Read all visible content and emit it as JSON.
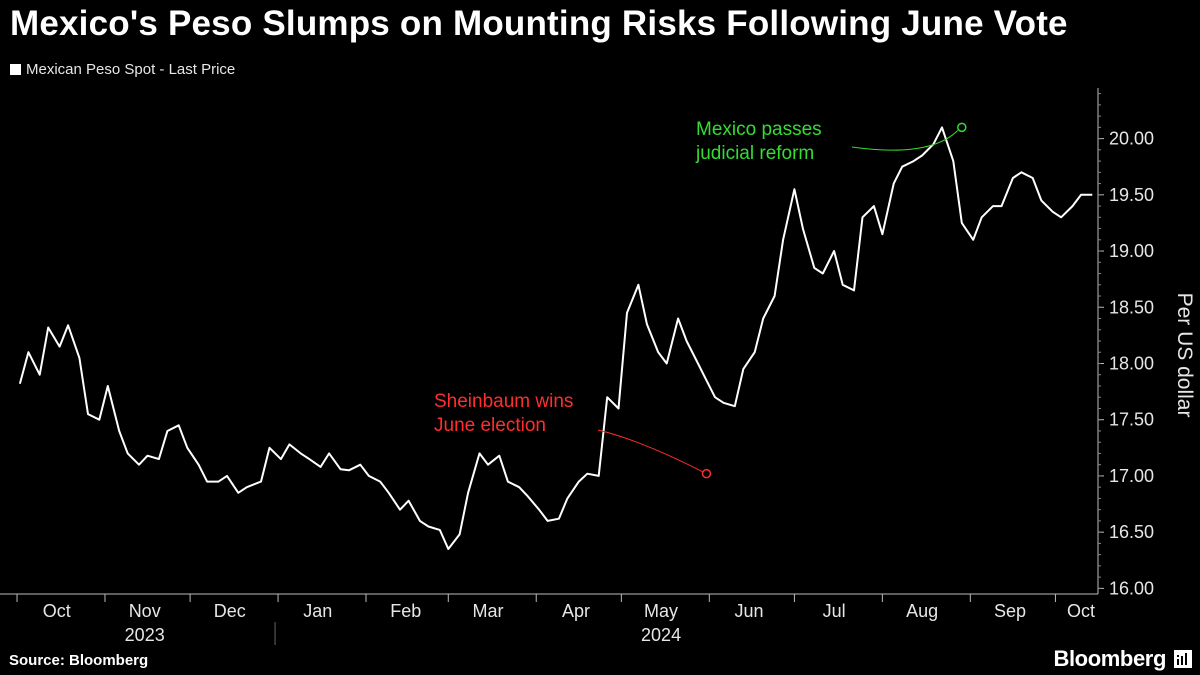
{
  "header": {
    "title": "Mexico's Peso Slumps on Mounting Risks Following June Vote",
    "legend_label": "Mexican Peso Spot - Last Price"
  },
  "footer": {
    "source": "Source: Bloomberg",
    "brand": "Bloomberg"
  },
  "colors": {
    "background": "#000000",
    "line": "#ffffff",
    "election_annotation": "#ff2e2e",
    "reform_annotation": "#33dd33"
  },
  "chart_data": {
    "type": "line",
    "title": "Mexico's Peso Slumps on Mounting Risks Following June Vote",
    "series": [
      {
        "name": "Mexican Peso Spot - Last Price",
        "x": [
          "2023-10-02",
          "2023-10-05",
          "2023-10-09",
          "2023-10-12",
          "2023-10-16",
          "2023-10-19",
          "2023-10-23",
          "2023-10-26",
          "2023-10-30",
          "2023-11-02",
          "2023-11-06",
          "2023-11-09",
          "2023-11-13",
          "2023-11-16",
          "2023-11-20",
          "2023-11-23",
          "2023-11-27",
          "2023-11-30",
          "2023-12-04",
          "2023-12-07",
          "2023-12-11",
          "2023-12-14",
          "2023-12-18",
          "2023-12-21",
          "2023-12-26",
          "2023-12-29",
          "2024-01-02",
          "2024-01-05",
          "2024-01-09",
          "2024-01-12",
          "2024-01-16",
          "2024-01-19",
          "2024-01-23",
          "2024-01-26",
          "2024-01-30",
          "2024-02-02",
          "2024-02-06",
          "2024-02-09",
          "2024-02-13",
          "2024-02-16",
          "2024-02-20",
          "2024-02-23",
          "2024-02-27",
          "2024-03-01",
          "2024-03-05",
          "2024-03-08",
          "2024-03-12",
          "2024-03-15",
          "2024-03-19",
          "2024-03-22",
          "2024-03-26",
          "2024-03-29",
          "2024-04-02",
          "2024-04-05",
          "2024-04-09",
          "2024-04-12",
          "2024-04-16",
          "2024-04-19",
          "2024-04-23",
          "2024-04-26",
          "2024-04-30",
          "2024-05-03",
          "2024-05-07",
          "2024-05-10",
          "2024-05-14",
          "2024-05-17",
          "2024-05-21",
          "2024-05-24",
          "2024-05-28",
          "2024-05-31",
          "2024-06-03",
          "2024-06-06",
          "2024-06-10",
          "2024-06-13",
          "2024-06-17",
          "2024-06-20",
          "2024-06-24",
          "2024-06-27",
          "2024-07-01",
          "2024-07-04",
          "2024-07-08",
          "2024-07-11",
          "2024-07-15",
          "2024-07-18",
          "2024-07-22",
          "2024-07-25",
          "2024-07-29",
          "2024-08-01",
          "2024-08-05",
          "2024-08-08",
          "2024-08-12",
          "2024-08-15",
          "2024-08-19",
          "2024-08-22",
          "2024-08-26",
          "2024-08-29",
          "2024-09-02",
          "2024-09-05",
          "2024-09-09",
          "2024-09-12",
          "2024-09-16",
          "2024-09-19",
          "2024-09-23",
          "2024-09-26",
          "2024-09-30",
          "2024-10-03",
          "2024-10-07",
          "2024-10-10",
          "2024-10-14"
        ],
        "values": [
          17.82,
          18.1,
          17.9,
          18.32,
          18.15,
          18.34,
          18.05,
          17.55,
          17.5,
          17.8,
          17.4,
          17.2,
          17.1,
          17.18,
          17.15,
          17.4,
          17.45,
          17.25,
          17.1,
          16.95,
          16.95,
          17.0,
          16.85,
          16.9,
          16.95,
          17.25,
          17.15,
          17.28,
          17.2,
          17.15,
          17.08,
          17.2,
          17.06,
          17.05,
          17.1,
          17.0,
          16.95,
          16.85,
          16.7,
          16.78,
          16.6,
          16.55,
          16.52,
          16.35,
          16.48,
          16.85,
          17.2,
          17.1,
          17.18,
          16.95,
          16.9,
          16.82,
          16.7,
          16.6,
          16.62,
          16.8,
          16.95,
          17.02,
          17.0,
          17.7,
          17.6,
          18.45,
          18.7,
          18.35,
          18.1,
          18.0,
          18.4,
          18.2,
          18.0,
          17.85,
          17.7,
          17.65,
          17.62,
          17.95,
          18.1,
          18.4,
          18.6,
          19.1,
          19.55,
          19.2,
          18.85,
          18.8,
          19.0,
          18.7,
          18.65,
          19.3,
          19.4,
          19.15,
          19.6,
          19.75,
          19.8,
          19.85,
          19.95,
          20.1,
          19.8,
          19.25,
          19.1,
          19.3,
          19.4,
          19.4,
          19.65,
          19.7,
          19.65,
          19.45,
          19.35,
          19.3,
          19.4,
          19.5,
          19.5
        ]
      }
    ],
    "ylabel": "Per US dollar",
    "ylim": [
      15.95,
      20.45
    ],
    "yticks": [
      "16.00",
      "16.50",
      "17.00",
      "17.50",
      "18.00",
      "18.50",
      "19.00",
      "19.50",
      "20.00"
    ],
    "xlim": [
      "2023-09-25",
      "2024-10-16"
    ],
    "xticks": [
      {
        "label": "Oct",
        "date": "2023-10-15"
      },
      {
        "label": "Nov",
        "date": "2023-11-15"
      },
      {
        "label": "Dec",
        "date": "2023-12-15"
      },
      {
        "label": "Jan",
        "date": "2024-01-15"
      },
      {
        "label": "Feb",
        "date": "2024-02-15"
      },
      {
        "label": "Mar",
        "date": "2024-03-15"
      },
      {
        "label": "Apr",
        "date": "2024-04-15"
      },
      {
        "label": "May",
        "date": "2024-05-15"
      },
      {
        "label": "Jun",
        "date": "2024-06-15"
      },
      {
        "label": "Jul",
        "date": "2024-07-15"
      },
      {
        "label": "Aug",
        "date": "2024-08-15"
      },
      {
        "label": "Sep",
        "date": "2024-09-15"
      },
      {
        "label": "Oct",
        "date": "2024-10-10"
      }
    ],
    "year_labels": [
      {
        "label": "2023",
        "date": "2023-11-15"
      },
      {
        "label": "2024",
        "date": "2024-05-15"
      }
    ],
    "annotations": [
      {
        "text_lines": [
          "Sheinbaum wins",
          "June election"
        ],
        "date": "2024-05-31",
        "value": 17.02,
        "color": "#ff2e2e"
      },
      {
        "text_lines": [
          "Mexico passes",
          "judicial reform"
        ],
        "date": "2024-08-29",
        "value": 20.1,
        "color": "#33dd33"
      }
    ],
    "grid": false,
    "legend": "top-left"
  }
}
